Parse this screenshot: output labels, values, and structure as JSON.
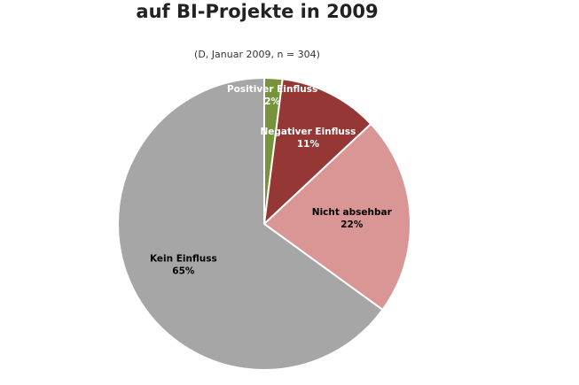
{
  "chart_data": {
    "type": "pie",
    "title": "auf BI-Projekte in 2009",
    "subtitle": "(D, Januar 2009, n = 304)",
    "categories": [
      "Positiver Einfluss",
      "Negativer Einfluss",
      "Nicht absehbar",
      "Kein Einfluss"
    ],
    "values": [
      2,
      11,
      22,
      65
    ],
    "value_labels": [
      "2%",
      "11%",
      "22%",
      "65%"
    ],
    "colors": [
      "#77933c",
      "#953735",
      "#d99694",
      "#a6a6a6"
    ]
  }
}
